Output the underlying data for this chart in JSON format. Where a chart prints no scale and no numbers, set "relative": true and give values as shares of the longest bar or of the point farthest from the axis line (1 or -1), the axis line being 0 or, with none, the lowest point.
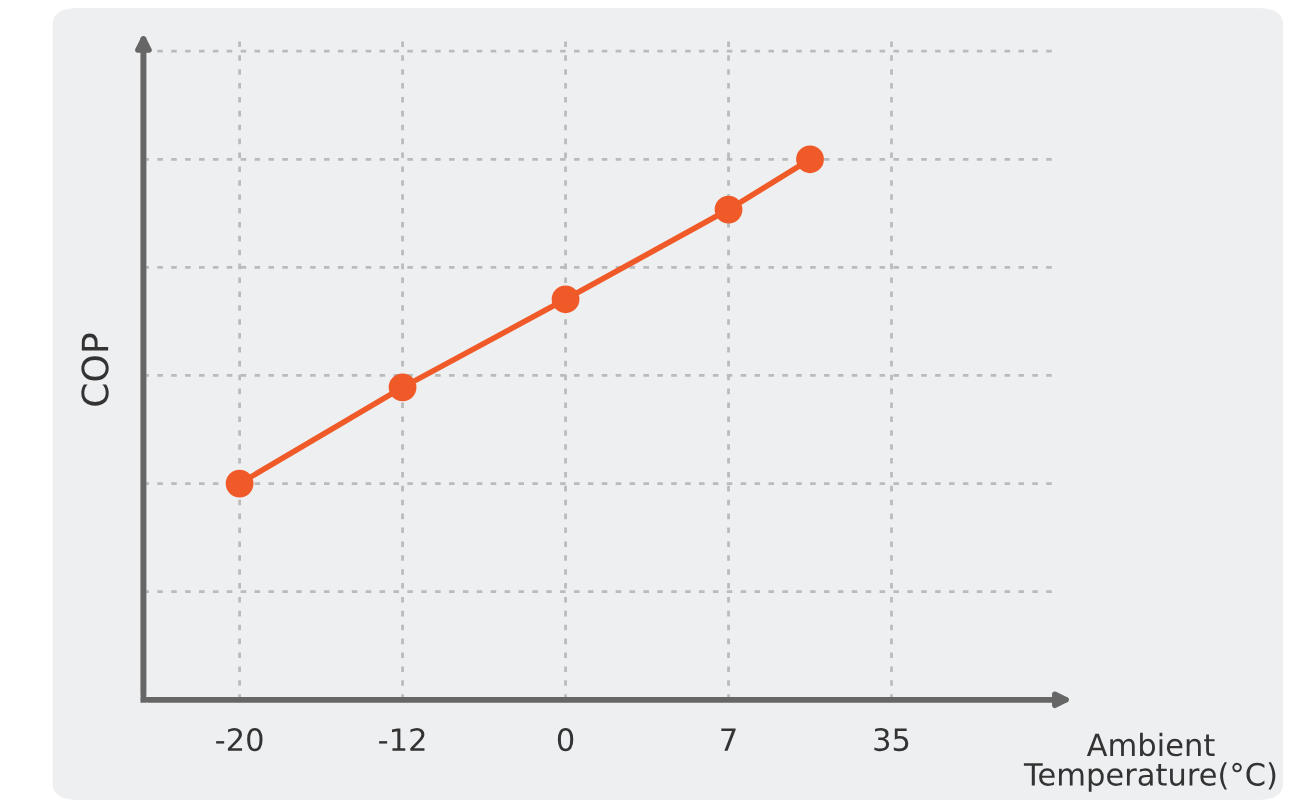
{
  "chart_data": {
    "type": "line",
    "xlabel": "Ambient\nTemperature(°C)",
    "ylabel": "COP",
    "categories": [
      "-20",
      null,
      "-12",
      null,
      "0",
      null,
      "7",
      null,
      "35"
    ],
    "series": [
      {
        "color": "#f05a28",
        "values": [
          0.4,
          null,
          0.578,
          null,
          0.741,
          null,
          0.907,
          1.0,
          null
        ]
      }
    ],
    "relative": true,
    "grid": true,
    "marker": "circle",
    "line_style": "solid"
  }
}
